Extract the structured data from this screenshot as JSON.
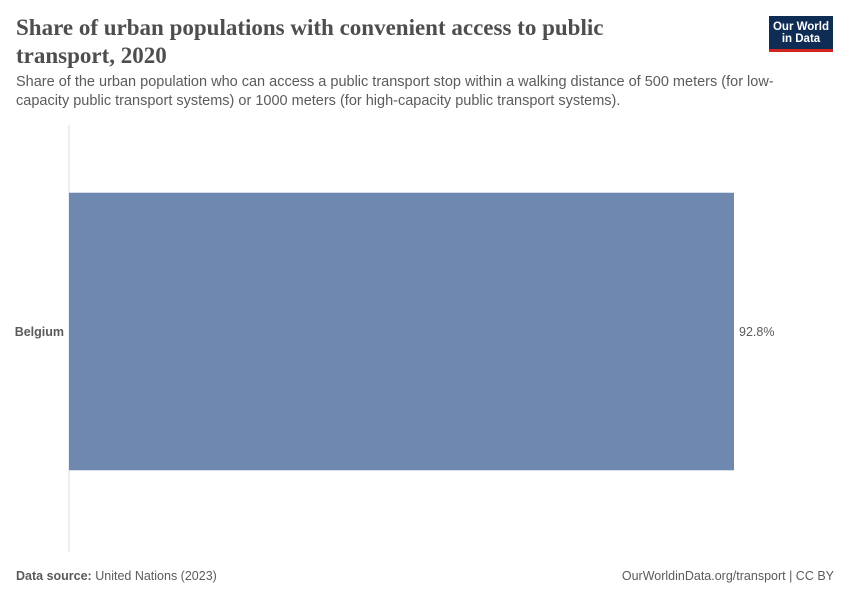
{
  "header": {
    "title": "Share of urban populations with convenient access to public transport, 2020",
    "subtitle": "Share of the urban population who can access a public transport stop within a walking distance of 500 meters (for low-capacity public transport systems) or 1000 meters (for high-capacity public transport systems).",
    "logo_line1": "Our World",
    "logo_line2": "in Data"
  },
  "footer": {
    "source_label": "Data source:",
    "source_value": "United Nations (2023)",
    "url_license": "OurWorldinData.org/transport | CC BY"
  },
  "colors": {
    "bar": "#6f88b0",
    "axis": "#dddddd",
    "logo_bg": "#0f2d54",
    "logo_accent": "#ce261e"
  },
  "chart_data": {
    "type": "bar",
    "orientation": "horizontal",
    "categories": [
      "Belgium"
    ],
    "values": [
      92.8
    ],
    "value_labels": [
      "92.8%"
    ],
    "unit": "%",
    "xlim": [
      0,
      92.8
    ],
    "grid": false,
    "legend": "none"
  }
}
